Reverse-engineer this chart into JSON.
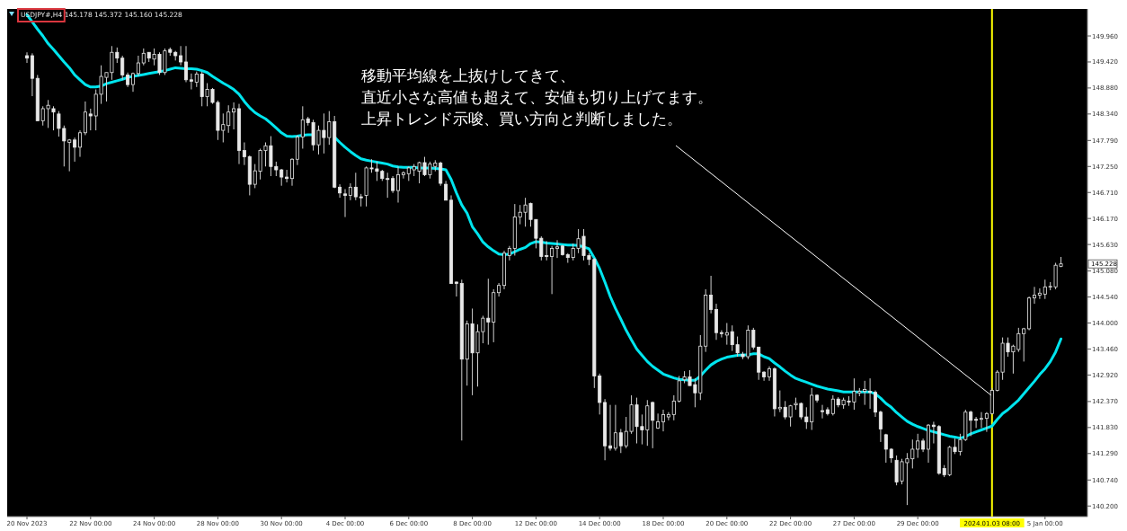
{
  "chart_data": {
    "type": "candlestick",
    "title": "USDJPY#,H4  145.178 145.372 145.160 145.228",
    "categories": [
      "20 Nov 2023",
      null,
      null,
      null,
      null,
      null,
      null,
      null,
      null,
      null,
      null,
      null,
      "22 Nov 00:00",
      null,
      null,
      null,
      null,
      null,
      null,
      null,
      null,
      null,
      null,
      null,
      "24 Nov 00:00",
      null,
      null,
      null,
      null,
      null,
      null,
      null,
      null,
      null,
      null,
      null,
      "28 Nov 00:00",
      null,
      null,
      null,
      null,
      null,
      null,
      null,
      null,
      null,
      null,
      null,
      "30 Nov 00:00",
      null,
      null,
      null,
      null,
      null,
      null,
      null,
      null,
      null,
      null,
      null,
      "4 Dec 00:00",
      null,
      null,
      null,
      null,
      null,
      null,
      null,
      null,
      null,
      null,
      null,
      "6 Dec 00:00",
      null,
      null,
      null,
      null,
      null,
      null,
      null,
      null,
      null,
      null,
      null,
      "8 Dec 00:00",
      null,
      null,
      null,
      null,
      null,
      null,
      null,
      null,
      null,
      null,
      null,
      "12 Dec 00:00",
      null,
      null,
      null,
      null,
      null,
      null,
      null,
      null,
      null,
      null,
      null,
      "14 Dec 00:00",
      null,
      null,
      null,
      null,
      null,
      null,
      null,
      null,
      null,
      null,
      null,
      "18 Dec 00:00",
      null,
      null,
      null,
      null,
      null,
      null,
      null,
      null,
      null,
      null,
      null,
      "20 Dec 00:00",
      null,
      null,
      null,
      null,
      null,
      null,
      null,
      null,
      null,
      null,
      null,
      "22 Dec 00:00",
      null,
      null,
      null,
      null,
      null,
      null,
      null,
      null,
      null,
      null,
      null,
      "27 Dec 00:00",
      null,
      null,
      null,
      null,
      null,
      null,
      null,
      null,
      null,
      null,
      null,
      "29 Dec 00:00",
      null,
      null,
      null,
      null,
      null,
      null,
      null,
      null,
      null,
      null,
      null,
      null,
      null,
      "2024.01.03 08:00",
      null,
      null,
      null,
      null,
      null,
      null,
      null,
      null,
      null,
      "5 Jan 00:00",
      null,
      null,
      null
    ],
    "ohlc": [
      [
        149.55,
        149.62,
        149.4,
        149.5
      ],
      [
        149.55,
        149.6,
        148.71,
        149.08
      ],
      [
        149.08,
        149.15,
        148.2,
        148.2
      ],
      [
        148.2,
        148.5,
        148.1,
        148.45
      ],
      [
        148.45,
        148.63,
        148.05,
        148.52
      ],
      [
        148.45,
        148.5,
        148.0,
        148.38
      ],
      [
        148.34,
        148.4,
        147.87,
        148.04
      ],
      [
        148.04,
        148.1,
        147.25,
        147.78
      ],
      [
        147.75,
        147.82,
        147.15,
        147.8
      ],
      [
        147.8,
        147.85,
        147.35,
        147.65
      ],
      [
        147.65,
        148.0,
        147.45,
        147.95
      ],
      [
        147.95,
        148.6,
        147.9,
        148.38
      ],
      [
        148.34,
        148.45,
        148.0,
        148.3
      ],
      [
        148.3,
        148.85,
        148.0,
        148.75
      ],
      [
        148.75,
        149.35,
        148.55,
        149.12
      ],
      [
        149.1,
        149.2,
        148.6,
        149.2
      ],
      [
        149.2,
        149.75,
        149.05,
        149.62
      ],
      [
        149.62,
        149.72,
        149.4,
        149.5
      ],
      [
        149.5,
        149.55,
        149.05,
        149.15
      ],
      [
        149.15,
        149.2,
        148.9,
        148.95
      ],
      [
        148.95,
        149.2,
        148.8,
        149.18
      ],
      [
        149.18,
        149.55,
        149.12,
        149.4
      ],
      [
        149.4,
        149.7,
        149.35,
        149.6
      ],
      [
        149.62,
        149.62,
        149.42,
        149.5
      ],
      [
        149.48,
        149.7,
        149.35,
        149.58
      ],
      [
        149.58,
        149.62,
        149.15,
        149.2
      ],
      [
        149.2,
        149.7,
        149.15,
        149.65
      ],
      [
        149.68,
        149.72,
        149.55,
        149.62
      ],
      [
        149.62,
        149.65,
        149.45,
        149.55
      ],
      [
        149.55,
        149.75,
        149.35,
        149.42
      ],
      [
        149.42,
        149.75,
        149.0,
        149.05
      ],
      [
        149.05,
        149.18,
        148.85,
        149.02
      ],
      [
        149.0,
        149.22,
        148.9,
        149.17
      ],
      [
        149.17,
        149.22,
        148.5,
        148.7
      ],
      [
        148.7,
        148.98,
        148.5,
        148.85
      ],
      [
        148.85,
        148.88,
        148.55,
        148.58
      ],
      [
        148.58,
        148.62,
        147.8,
        148.0
      ],
      [
        148.0,
        148.35,
        147.75,
        148.12
      ],
      [
        148.1,
        148.52,
        147.95,
        148.38
      ],
      [
        148.38,
        148.58,
        148.02,
        148.45
      ],
      [
        148.45,
        148.55,
        147.3,
        147.58
      ],
      [
        147.58,
        147.75,
        147.28,
        147.45
      ],
      [
        147.45,
        147.48,
        146.65,
        146.88
      ],
      [
        146.88,
        147.3,
        146.8,
        147.16
      ],
      [
        147.15,
        147.62,
        146.98,
        147.58
      ],
      [
        147.58,
        147.75,
        147.25,
        147.68
      ],
      [
        147.68,
        147.88,
        147.05,
        147.25
      ],
      [
        147.25,
        147.35,
        147.05,
        147.18
      ],
      [
        147.18,
        147.2,
        146.85,
        147.03
      ],
      [
        147.03,
        147.18,
        146.92,
        147.0
      ],
      [
        147.0,
        147.42,
        146.85,
        147.4
      ],
      [
        147.4,
        147.9,
        147.28,
        147.86
      ],
      [
        147.86,
        148.5,
        147.62,
        148.22
      ],
      [
        148.24,
        148.28,
        148.1,
        148.16
      ],
      [
        148.16,
        148.22,
        147.58,
        147.7
      ],
      [
        147.7,
        148.1,
        147.5,
        148.0
      ],
      [
        148.0,
        148.35,
        147.52,
        147.85
      ],
      [
        147.85,
        148.4,
        147.7,
        148.18
      ],
      [
        148.18,
        148.3,
        146.8,
        146.82
      ],
      [
        146.82,
        146.88,
        146.6,
        146.7
      ],
      [
        146.68,
        146.78,
        146.2,
        146.65
      ],
      [
        146.65,
        146.9,
        146.55,
        146.82
      ],
      [
        146.82,
        147.12,
        146.55,
        146.62
      ],
      [
        146.62,
        146.68,
        146.42,
        146.6
      ],
      [
        146.65,
        147.25,
        146.42,
        147.22
      ],
      [
        147.22,
        147.4,
        147.12,
        147.2
      ],
      [
        147.2,
        147.35,
        146.95,
        147.15
      ],
      [
        147.15,
        147.18,
        146.95,
        147.0
      ],
      [
        147.0,
        147.12,
        146.6,
        146.98
      ],
      [
        147.0,
        147.05,
        146.7,
        146.75
      ],
      [
        146.75,
        147.25,
        146.5,
        147.08
      ],
      [
        147.08,
        147.15,
        147.0,
        147.12
      ],
      [
        147.1,
        147.25,
        146.95,
        147.22
      ],
      [
        147.18,
        147.3,
        147.05,
        147.25
      ],
      [
        147.15,
        147.35,
        146.9,
        147.33
      ],
      [
        147.33,
        147.45,
        147.05,
        147.08
      ],
      [
        147.08,
        147.35,
        147.0,
        147.3
      ],
      [
        147.25,
        147.38,
        147.15,
        147.32
      ],
      [
        147.32,
        147.35,
        146.85,
        146.9
      ],
      [
        146.88,
        146.95,
        146.55,
        146.55
      ],
      [
        146.55,
        146.65,
        144.82,
        144.82
      ],
      [
        144.85,
        144.86,
        144.55,
        144.82
      ],
      [
        144.82,
        144.9,
        141.56,
        143.25
      ],
      [
        143.25,
        144.05,
        142.7,
        143.98
      ],
      [
        143.98,
        144.3,
        142.5,
        143.38
      ],
      [
        143.38,
        143.97,
        142.68,
        143.82
      ],
      [
        143.82,
        144.15,
        143.58,
        144.1
      ],
      [
        144.1,
        144.92,
        143.55,
        144.02
      ],
      [
        144.02,
        144.7,
        143.6,
        144.63
      ],
      [
        144.63,
        144.83,
        144.55,
        144.78
      ],
      [
        144.78,
        145.5,
        144.7,
        145.45
      ],
      [
        145.4,
        145.6,
        145.3,
        145.55
      ],
      [
        145.55,
        146.47,
        145.4,
        146.2
      ],
      [
        146.2,
        146.45,
        146.05,
        146.3
      ],
      [
        146.3,
        146.6,
        146.0,
        146.45
      ],
      [
        146.48,
        146.5,
        146.0,
        146.15
      ],
      [
        146.15,
        146.15,
        145.55,
        145.76
      ],
      [
        145.76,
        145.8,
        145.3,
        145.38
      ],
      [
        145.4,
        145.7,
        145.3,
        145.38
      ],
      [
        145.38,
        145.6,
        144.6,
        145.55
      ],
      [
        145.55,
        145.72,
        145.35,
        145.58
      ],
      [
        145.6,
        145.62,
        145.4,
        145.42
      ],
      [
        145.42,
        145.45,
        145.25,
        145.36
      ],
      [
        145.36,
        145.65,
        145.3,
        145.55
      ],
      [
        145.55,
        145.95,
        145.45,
        145.75
      ],
      [
        145.8,
        145.95,
        145.3,
        145.4
      ],
      [
        145.4,
        145.45,
        145.2,
        145.32
      ],
      [
        145.32,
        145.35,
        142.65,
        142.9
      ],
      [
        142.9,
        142.95,
        142.1,
        142.35
      ],
      [
        142.35,
        142.42,
        141.15,
        141.45
      ],
      [
        141.45,
        142.3,
        141.35,
        141.4
      ],
      [
        141.4,
        142.3,
        141.35,
        141.72
      ],
      [
        141.72,
        141.8,
        141.3,
        141.45
      ],
      [
        141.45,
        142.05,
        141.4,
        141.75
      ],
      [
        141.75,
        142.5,
        141.7,
        142.3
      ],
      [
        142.3,
        142.45,
        141.5,
        141.85
      ],
      [
        141.85,
        142.1,
        141.48,
        141.78
      ],
      [
        141.78,
        142.4,
        141.45,
        142.28
      ],
      [
        142.35,
        142.37,
        141.4,
        141.98
      ],
      [
        141.82,
        142.12,
        141.8,
        141.95
      ],
      [
        141.95,
        142.2,
        141.75,
        142.1
      ],
      [
        142.05,
        142.15,
        141.98,
        142.1
      ],
      [
        142.1,
        142.5,
        141.98,
        142.38
      ],
      [
        142.38,
        142.9,
        142.35,
        142.8
      ],
      [
        142.82,
        143.0,
        142.75,
        142.88
      ],
      [
        142.88,
        143.02,
        142.7,
        142.7
      ],
      [
        142.72,
        142.85,
        142.25,
        142.55
      ],
      [
        142.55,
        143.75,
        142.4,
        143.52
      ],
      [
        143.52,
        144.7,
        143.4,
        144.58
      ],
      [
        144.58,
        144.98,
        144.2,
        144.28
      ],
      [
        144.28,
        144.4,
        143.65,
        143.8
      ],
      [
        143.8,
        143.85,
        143.7,
        143.78
      ],
      [
        143.75,
        144.0,
        143.55,
        143.8
      ],
      [
        143.82,
        143.95,
        143.42,
        143.55
      ],
      [
        143.55,
        143.72,
        143.3,
        143.38
      ],
      [
        143.35,
        143.4,
        143.25,
        143.3
      ],
      [
        143.3,
        143.95,
        143.25,
        143.85
      ],
      [
        143.85,
        143.9,
        143.45,
        143.5
      ],
      [
        143.5,
        143.5,
        142.82,
        142.98
      ],
      [
        142.98,
        143.0,
        142.8,
        142.88
      ],
      [
        142.88,
        143.1,
        142.8,
        143.05
      ],
      [
        143.05,
        143.08,
        142.06,
        142.22
      ],
      [
        142.22,
        142.6,
        142.15,
        142.25
      ],
      [
        142.25,
        142.38,
        142.0,
        142.05
      ],
      [
        142.05,
        142.3,
        141.85,
        142.28
      ],
      [
        142.3,
        142.45,
        142.2,
        142.33
      ],
      [
        142.33,
        142.35,
        142.0,
        142.05
      ],
      [
        142.05,
        142.25,
        141.8,
        141.95
      ],
      [
        141.95,
        142.65,
        141.78,
        142.5
      ],
      [
        142.5,
        142.52,
        142.35,
        142.4
      ],
      [
        142.18,
        142.3,
        142.02,
        142.16
      ],
      [
        142.2,
        142.25,
        142.08,
        142.12
      ],
      [
        142.12,
        142.5,
        142.08,
        142.42
      ],
      [
        142.42,
        142.46,
        142.25,
        142.3
      ],
      [
        142.3,
        142.45,
        142.22,
        142.4
      ],
      [
        142.38,
        142.48,
        142.28,
        142.36
      ],
      [
        142.36,
        142.85,
        142.2,
        142.58
      ],
      [
        142.55,
        142.65,
        142.48,
        142.58
      ],
      [
        142.58,
        142.8,
        142.3,
        142.62
      ],
      [
        142.58,
        142.85,
        142.22,
        142.56
      ],
      [
        142.56,
        142.6,
        142.05,
        142.15
      ],
      [
        142.15,
        142.18,
        141.53,
        141.8
      ],
      [
        141.68,
        141.7,
        141.1,
        141.38
      ],
      [
        141.38,
        141.4,
        141.1,
        141.2
      ],
      [
        141.15,
        141.25,
        140.63,
        140.7
      ],
      [
        140.72,
        141.18,
        140.65,
        141.12
      ],
      [
        141.1,
        141.3,
        140.22,
        141.18
      ],
      [
        141.18,
        141.58,
        140.98,
        141.38
      ],
      [
        141.38,
        141.7,
        141.2,
        141.55
      ],
      [
        141.55,
        141.6,
        141.32,
        141.38
      ],
      [
        141.38,
        141.9,
        141.1,
        141.88
      ],
      [
        141.88,
        141.95,
        141.5,
        141.85
      ],
      [
        141.85,
        141.88,
        140.85,
        140.88
      ],
      [
        140.98,
        141.05,
        140.8,
        140.85
      ],
      [
        140.85,
        141.45,
        140.82,
        141.42
      ],
      [
        141.42,
        141.6,
        141.28,
        141.33
      ],
      [
        141.33,
        141.7,
        141.25,
        141.58
      ],
      [
        141.58,
        142.2,
        141.55,
        142.15
      ],
      [
        142.15,
        142.18,
        141.65,
        141.98
      ],
      [
        142.0,
        142.05,
        141.82,
        141.98
      ],
      [
        142.0,
        142.15,
        141.82,
        142.02
      ],
      [
        142.02,
        142.15,
        141.74,
        142.12
      ],
      [
        142.12,
        142.65,
        142.1,
        142.6
      ],
      [
        142.6,
        143.02,
        142.58,
        142.98
      ],
      [
        142.98,
        143.7,
        142.82,
        143.58
      ],
      [
        143.58,
        143.7,
        143.3,
        143.4
      ],
      [
        143.4,
        143.55,
        142.95,
        143.52
      ],
      [
        143.45,
        143.9,
        143.4,
        143.78
      ],
      [
        143.78,
        143.9,
        143.2,
        143.88
      ],
      [
        143.88,
        144.55,
        143.85,
        144.52
      ],
      [
        144.52,
        144.75,
        144.4,
        144.58
      ],
      [
        144.58,
        144.72,
        144.5,
        144.62
      ],
      [
        144.6,
        144.9,
        144.5,
        144.75
      ],
      [
        144.75,
        144.85,
        144.68,
        144.76
      ],
      [
        144.75,
        145.25,
        144.7,
        145.2
      ],
      [
        145.178,
        145.372,
        145.16,
        145.228
      ]
    ],
    "series": [
      {
        "type": "line",
        "color": "#00e5ee",
        "values": [
          150.4,
          150.25,
          150.1,
          149.96,
          149.8,
          149.68,
          149.55,
          149.42,
          149.3,
          149.15,
          149.05,
          148.95,
          148.9,
          148.9,
          148.92,
          148.97,
          149.0,
          149.03,
          149.06,
          149.1,
          149.12,
          149.14,
          149.16,
          149.18,
          149.2,
          149.22,
          149.24,
          149.27,
          149.3,
          149.29,
          149.28,
          149.28,
          149.27,
          149.24,
          149.2,
          149.12,
          149.05,
          148.98,
          148.92,
          148.85,
          148.75,
          148.6,
          148.47,
          148.37,
          148.3,
          148.24,
          148.15,
          148.05,
          147.95,
          147.88,
          147.87,
          147.88,
          147.9,
          147.91,
          147.91,
          null,
          null,
          null,
          147.86,
          147.75,
          147.65,
          147.56,
          147.48,
          147.41,
          147.38,
          147.36,
          147.34,
          147.32,
          147.3,
          147.26,
          147.24,
          147.23,
          147.23,
          147.23,
          147.22,
          147.22,
          147.22,
          147.21,
          147.2,
          147.18,
          146.98,
          146.7,
          146.45,
          146.28,
          146.0,
          145.85,
          145.68,
          145.58,
          145.5,
          145.43,
          145.42,
          145.43,
          145.48,
          145.53,
          145.57,
          145.65,
          145.69,
          145.68,
          145.66,
          145.65,
          145.64,
          145.63,
          145.62,
          145.62,
          145.61,
          145.58,
          145.54,
          145.35,
          145.13,
          144.85,
          144.55,
          144.3,
          144.08,
          143.85,
          143.65,
          143.46,
          143.33,
          143.2,
          143.1,
          143.02,
          142.94,
          142.9,
          142.86,
          142.83,
          142.82,
          142.81,
          142.81,
          142.9,
          143.02,
          143.13,
          143.2,
          143.25,
          143.29,
          143.31,
          143.33,
          143.34,
          143.34,
          143.36,
          143.36,
          143.3,
          143.26,
          143.17,
          143.09,
          143.0,
          142.92,
          142.85,
          142.81,
          142.77,
          142.73,
          142.69,
          142.66,
          142.63,
          142.61,
          142.59,
          142.57,
          142.57,
          142.57,
          142.57,
          142.57,
          142.57,
          142.53,
          142.44,
          142.33,
          142.25,
          142.14,
          142.05,
          141.96,
          141.9,
          141.85,
          141.81,
          141.77,
          141.74,
          141.71,
          141.68,
          141.65,
          141.63,
          141.61,
          141.64,
          141.7,
          141.74,
          141.78,
          141.82,
          141.86,
          142.0,
          142.12,
          142.2,
          142.3,
          142.4,
          142.53,
          142.66,
          142.79,
          142.93,
          143.05,
          143.2,
          143.4,
          143.67
        ]
      }
    ],
    "ylim": [
      139.98,
      150.52
    ],
    "yticks": [
      {
        "value": 140.2,
        "label": "140.200"
      },
      {
        "value": 140.74,
        "label": "140.740"
      },
      {
        "value": 141.29,
        "label": "141.290"
      },
      {
        "value": 141.83,
        "label": "141.830"
      },
      {
        "value": 142.37,
        "label": "142.370"
      },
      {
        "value": 142.92,
        "label": "142.920"
      },
      {
        "value": 143.46,
        "label": "143.460"
      },
      {
        "value": 144.0,
        "label": "144.000"
      },
      {
        "value": 144.54,
        "label": "144.540"
      },
      {
        "value": 145.08,
        "label": "145.080"
      },
      {
        "value": 145.63,
        "label": "145.630"
      },
      {
        "value": 146.17,
        "label": "146.170"
      },
      {
        "value": 146.71,
        "label": "146.710"
      },
      {
        "value": 147.25,
        "label": "147.250"
      },
      {
        "value": 147.79,
        "label": "147.790"
      },
      {
        "value": 148.34,
        "label": "148.340"
      },
      {
        "value": 148.88,
        "label": "148.880"
      },
      {
        "value": 149.42,
        "label": "149.420"
      },
      {
        "value": 149.96,
        "label": "149.960"
      }
    ],
    "ref_lines": [
      {
        "axis": "x",
        "value": "2024.01.03 08:00",
        "color": "#ffff00"
      }
    ],
    "annotations": [
      "移動平均線を上抜けしてきて、",
      "直近小さな高値も超えて、安値も切り上げてます。",
      {
        "text": "上昇トレンド示唆、買い方向と判断しました。",
        "x": "2024.01.03 08:00",
        "y": 142.5
      },
      "145.228"
    ]
  }
}
